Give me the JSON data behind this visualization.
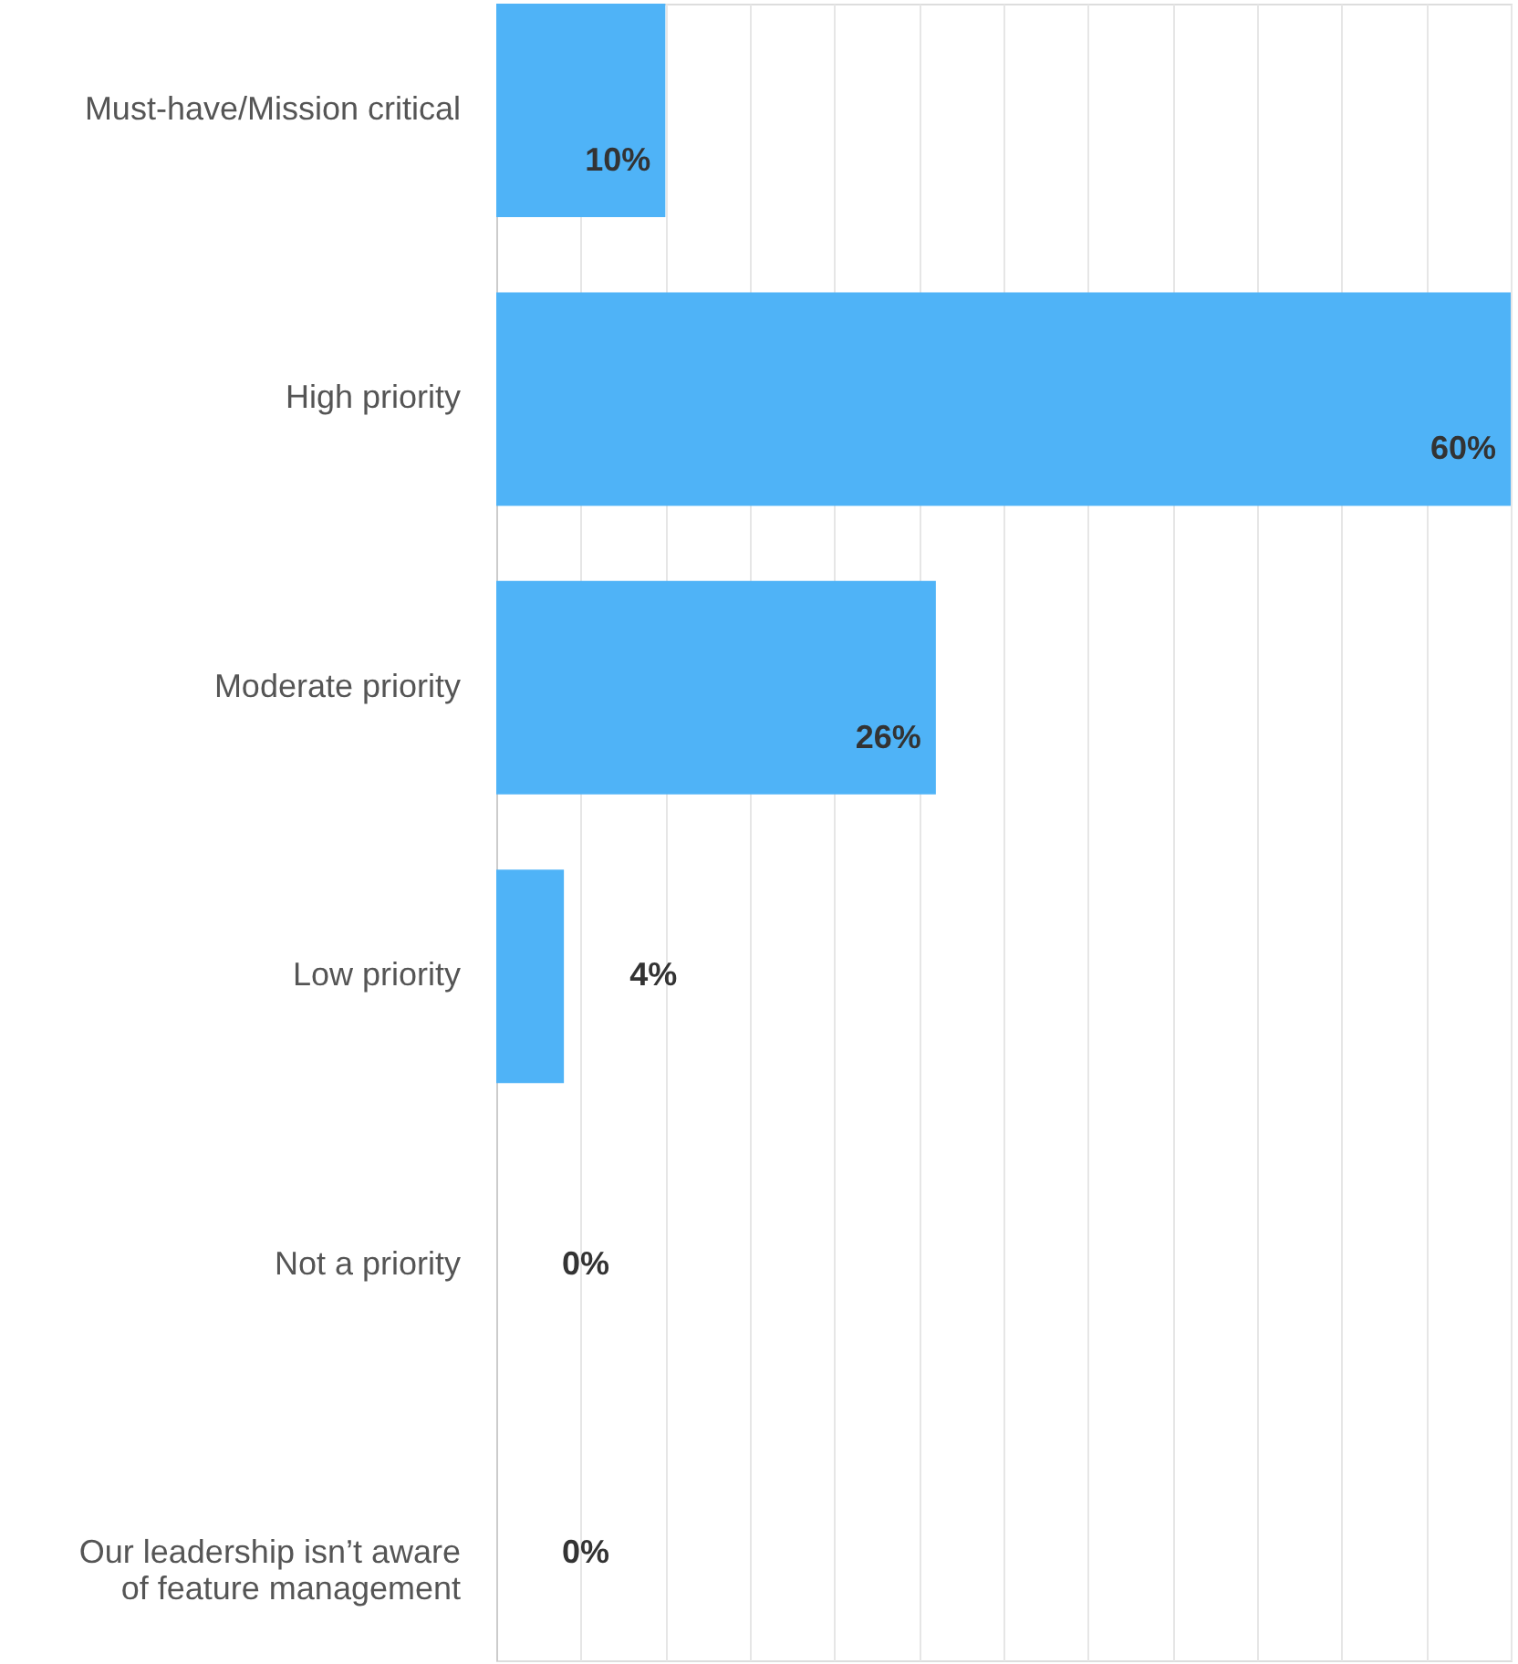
{
  "chart_data": {
    "type": "bar",
    "orientation": "horizontal",
    "categories": [
      "Must-have/Mission critical",
      "High priority",
      "Moderate priority",
      "Low priority",
      "Not a priority",
      "Our leadership isn’t aware\nof feature management"
    ],
    "values": [
      10,
      60,
      26,
      4,
      0,
      0
    ],
    "value_labels": [
      "10%",
      "60%",
      "26%",
      "4%",
      "0%",
      "0%"
    ],
    "color": "#4fb3f7",
    "xlim": [
      0,
      60
    ],
    "xticks": [
      {
        "value": 0,
        "label": null
      },
      {
        "value": 5,
        "label": null
      },
      {
        "value": 10,
        "label": null
      },
      {
        "value": 15,
        "label": null
      },
      {
        "value": 20,
        "label": null
      },
      {
        "value": 25,
        "label": null
      },
      {
        "value": 30,
        "label": null
      },
      {
        "value": 35,
        "label": null
      },
      {
        "value": 40,
        "label": null
      },
      {
        "value": 45,
        "label": null
      },
      {
        "value": 50,
        "label": null
      },
      {
        "value": 55,
        "label": null
      },
      {
        "value": 60,
        "label": null
      }
    ],
    "tick_labels": "y",
    "grid": "x"
  }
}
